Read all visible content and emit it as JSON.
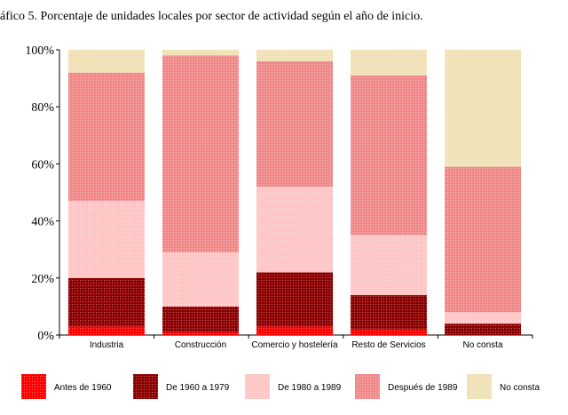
{
  "chart_data": {
    "type": "bar",
    "stacked": true,
    "title": "áfico 5. Porcentaje de unidades locales por sector de actividad según el año de inicio.",
    "categories": [
      "Industria",
      "Construcción",
      "Comercio y hostelería",
      "Resto de Servicios",
      "No consta"
    ],
    "series": [
      {
        "name": "Antes de 1960",
        "color": "#ff0000",
        "values": [
          3,
          1,
          3,
          2,
          0
        ]
      },
      {
        "name": "De 1960 a 1979",
        "color": "#8b0000",
        "values": [
          17,
          9,
          19,
          12,
          4
        ]
      },
      {
        "name": "De 1980 a 1989",
        "color": "#ffc6c6",
        "values": [
          27,
          19,
          30,
          21,
          4
        ]
      },
      {
        "name": "Después de 1989",
        "color": "#f08a8a",
        "values": [
          45,
          69,
          44,
          56,
          51
        ]
      },
      {
        "name": "No consta",
        "color": "#f0e2b6",
        "values": [
          8,
          2,
          4,
          9,
          41
        ]
      }
    ],
    "yticks": [
      "0%",
      "20%",
      "40%",
      "60%",
      "80%",
      "100%"
    ],
    "ylim": [
      0,
      100
    ],
    "legend_position": "bottom",
    "grid": false
  }
}
